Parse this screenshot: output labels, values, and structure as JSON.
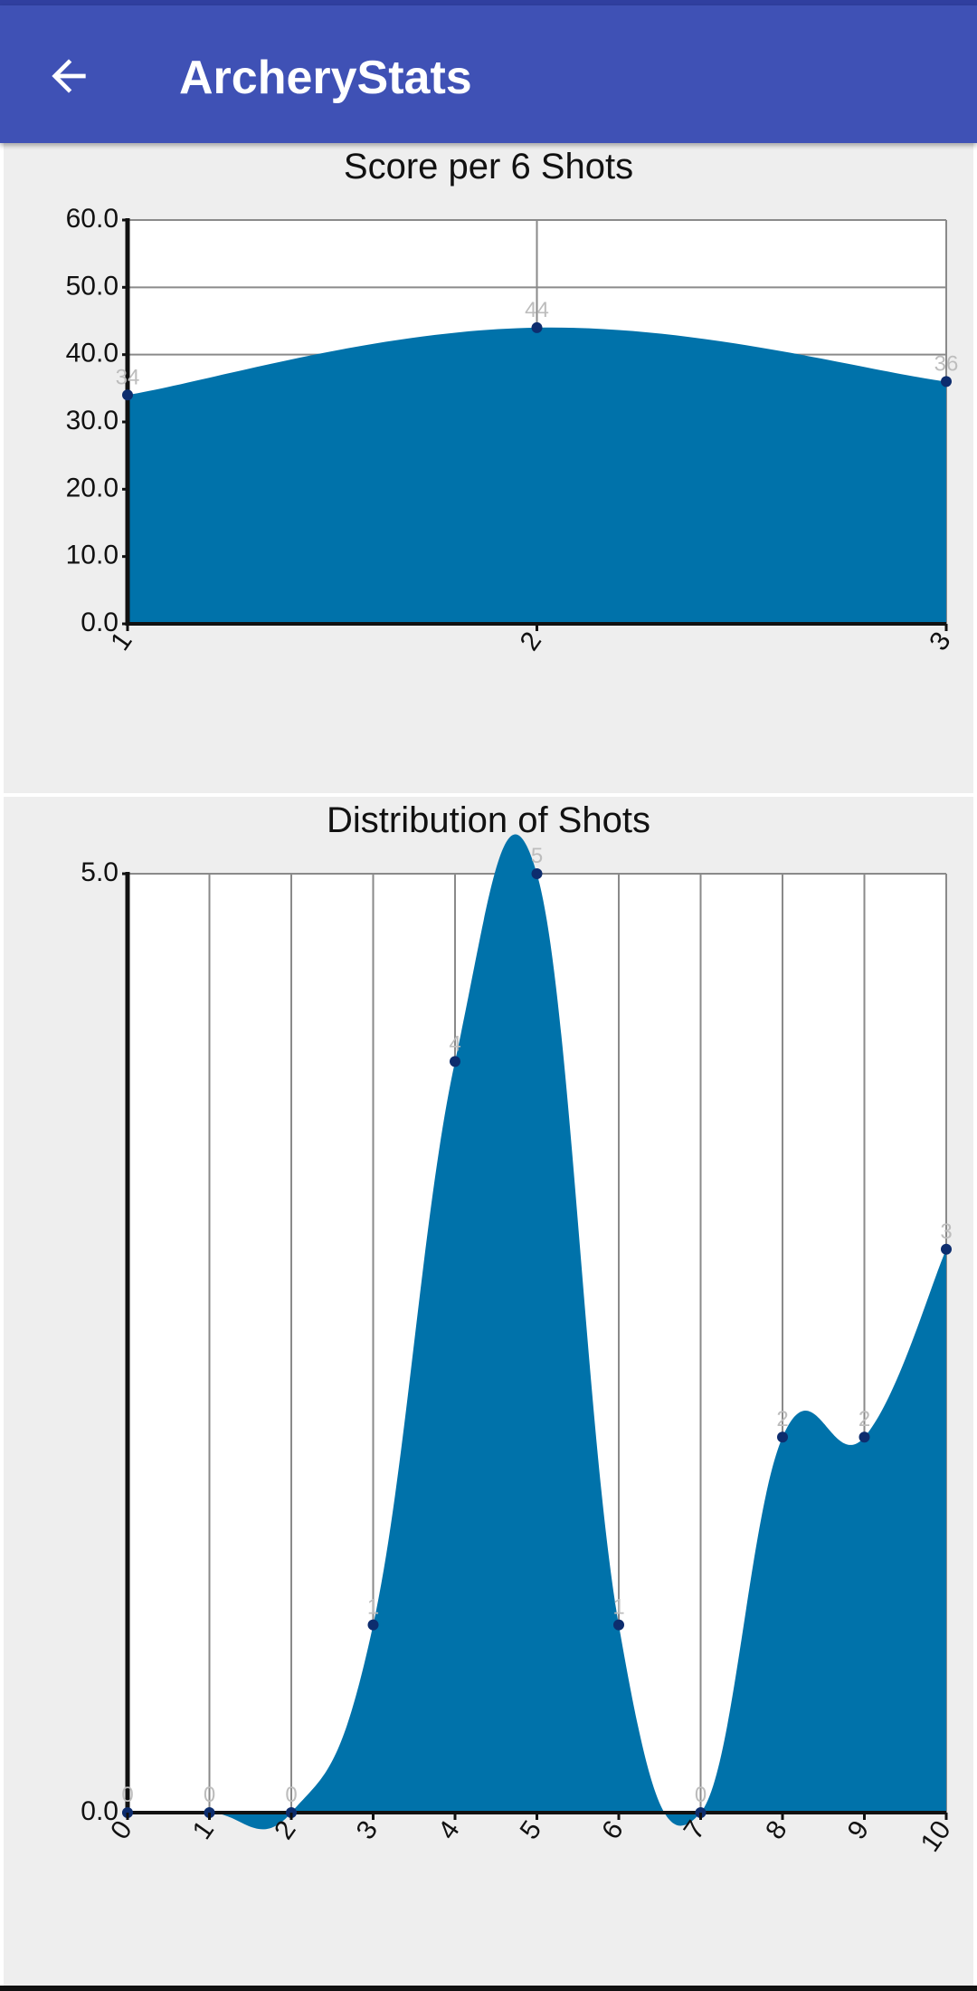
{
  "app_bar": {
    "title": "ArcheryStats",
    "back_icon": "arrow-back-icon",
    "color": "#3f51b5"
  },
  "charts": {
    "score": {
      "title": "Score per 6 Shots"
    },
    "distribution": {
      "title": "Distribution of Shots"
    }
  },
  "chart_data": [
    {
      "type": "area",
      "title": "Score per 6 Shots",
      "x": [
        1,
        2,
        3
      ],
      "values": [
        34,
        44,
        36
      ],
      "data_labels": [
        "34",
        "44",
        "36"
      ],
      "xticks": [
        "1",
        "2",
        "3"
      ],
      "yticks": [
        "0.0",
        "10.0",
        "20.0",
        "30.0",
        "40.0",
        "50.0",
        "60.0"
      ],
      "ylim": [
        0,
        60
      ],
      "grid": true,
      "fill_color": "#0072aa",
      "point_color": "#0d2d6e"
    },
    {
      "type": "area",
      "title": "Distribution of Shots",
      "x": [
        0,
        1,
        2,
        3,
        4,
        5,
        6,
        7,
        8,
        9,
        10
      ],
      "values": [
        0,
        0,
        0,
        1,
        4,
        5,
        1,
        0,
        2,
        2,
        3
      ],
      "data_labels": [
        "0",
        "0",
        "0",
        "1",
        "4",
        "5",
        "1",
        "0",
        "2",
        "2",
        "3"
      ],
      "xticks": [
        "0",
        "1",
        "2",
        "3",
        "4",
        "5",
        "6",
        "7",
        "8",
        "9",
        "10"
      ],
      "yticks": [
        "0.0",
        "5.0"
      ],
      "ylim": [
        0,
        5
      ],
      "grid": true,
      "fill_color": "#0072aa",
      "point_color": "#0d2d6e"
    }
  ]
}
